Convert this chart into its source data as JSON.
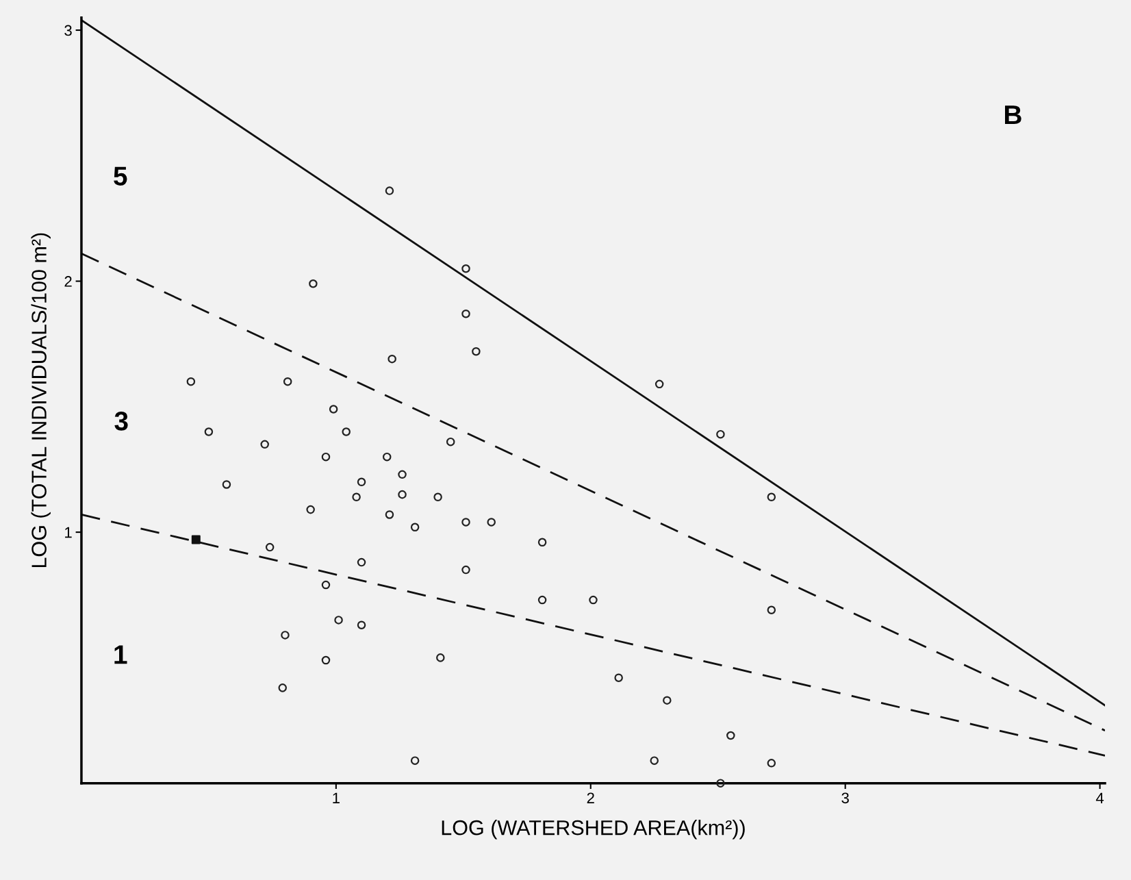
{
  "chart_data": {
    "type": "scatter",
    "xlabel": "LOG (WATERSHED AREA(km²))",
    "ylabel": "LOG (TOTAL INDIVIDUALS/100 m²)",
    "xlim": [
      0,
      4.02
    ],
    "ylim": [
      0,
      3.05
    ],
    "xticks": [
      1,
      2,
      3,
      4
    ],
    "yticks": [
      1,
      2,
      3
    ],
    "grid": false,
    "legend": false,
    "series": [
      {
        "marker": "circle",
        "color": "#222222",
        "x": [
          1.21,
          1.51,
          0.91,
          1.51,
          1.55,
          1.22,
          0.43,
          0.81,
          2.27,
          0.99,
          0.5,
          1.04,
          2.51,
          1.45,
          0.72,
          0.96,
          1.2,
          1.26,
          0.57,
          1.1,
          1.26,
          1.08,
          1.4,
          2.71,
          0.9,
          1.21,
          1.31,
          1.51,
          1.61,
          1.81,
          0.74,
          1.1,
          1.51,
          0.96,
          1.81,
          2.01,
          2.71,
          1.01,
          1.1,
          0.8,
          1.41,
          0.96,
          2.11,
          0.79,
          2.3,
          2.55,
          1.31,
          2.25,
          2.71,
          2.51
        ],
        "values": [
          2.36,
          2.05,
          1.99,
          1.87,
          1.72,
          1.69,
          1.6,
          1.6,
          1.59,
          1.49,
          1.4,
          1.4,
          1.39,
          1.36,
          1.35,
          1.3,
          1.3,
          1.23,
          1.19,
          1.2,
          1.15,
          1.14,
          1.14,
          1.14,
          1.09,
          1.07,
          1.02,
          1.04,
          1.04,
          0.96,
          0.94,
          0.88,
          0.85,
          0.79,
          0.73,
          0.73,
          0.69,
          0.65,
          0.63,
          0.59,
          0.5,
          0.49,
          0.42,
          0.38,
          0.33,
          0.19,
          0.09,
          0.09,
          0.08,
          0.0
        ]
      },
      {
        "type": "scatter",
        "marker": "square",
        "color": "#111111",
        "x": [
          0.45
        ],
        "values": [
          0.97
        ]
      },
      {
        "type": "line",
        "line_style": "solid",
        "color": "#111111",
        "x": [
          0,
          4.02
        ],
        "values": [
          3.04,
          0.31
        ]
      },
      {
        "type": "line",
        "line_style": "dashed",
        "color": "#111111",
        "x": [
          0,
          4.02
        ],
        "values": [
          2.11,
          0.21
        ]
      },
      {
        "type": "line",
        "line_style": "dashed",
        "color": "#111111",
        "x": [
          0,
          4.02
        ],
        "values": [
          1.07,
          0.11
        ]
      }
    ],
    "annotations": [
      "5",
      "3",
      "1",
      "B"
    ]
  }
}
